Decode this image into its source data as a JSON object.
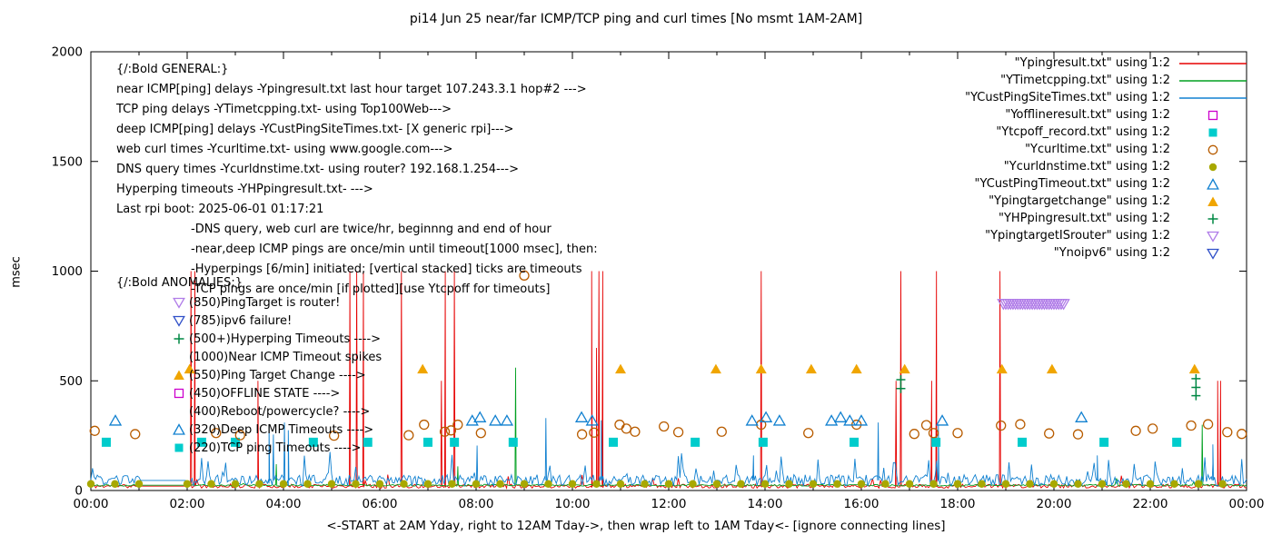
{
  "title": "pi14 Jun 25  near/far ICMP/TCP ping and curl times [No msmt 1AM-2AM]",
  "y_label": "msec",
  "x_caption": "<-START at 2AM Yday, right to 12AM Tday->, then wrap left to 1AM Tday<- [ignore connecting lines]",
  "chart_data": {
    "type": "line",
    "x_unit": "hours",
    "xlim": [
      0,
      24
    ],
    "ylim": [
      0,
      2000
    ],
    "grid": false,
    "legend_position": "top-right",
    "y_ticks": [
      0,
      500,
      1000,
      1500,
      2000
    ],
    "x_major_tick_hours": 2,
    "x_tick_labels": [
      "00:00",
      "02:00",
      "04:00",
      "06:00",
      "08:00",
      "10:00",
      "12:00",
      "14:00",
      "16:00",
      "18:00",
      "20:00",
      "22:00",
      "00:00"
    ],
    "series": [
      {
        "name": "Ypingresult",
        "label": "\"Ypingresult.txt\" using 1:2",
        "color": "#e60000",
        "style": "line",
        "baseline": {
          "base": 20,
          "noise": 9,
          "bump_prob": 0.02,
          "bump_amp": 60,
          "seed": 11
        },
        "spikes": [
          [
            2.08,
            1000
          ],
          [
            2.16,
            1000
          ],
          [
            3.47,
            500
          ],
          [
            5.38,
            1000
          ],
          [
            5.52,
            1000
          ],
          [
            5.66,
            1000
          ],
          [
            6.45,
            1000
          ],
          [
            7.28,
            500
          ],
          [
            7.36,
            1000
          ],
          [
            7.55,
            1000
          ],
          [
            10.4,
            1000
          ],
          [
            10.5,
            650
          ],
          [
            10.55,
            1000
          ],
          [
            10.63,
            1000
          ],
          [
            13.92,
            1000
          ],
          [
            16.72,
            500
          ],
          [
            16.82,
            1000
          ],
          [
            17.46,
            500
          ],
          [
            17.56,
            1000
          ],
          [
            18.88,
            1000
          ],
          [
            23.4,
            500
          ],
          [
            23.46,
            500
          ]
        ]
      },
      {
        "name": "YTimetcpping",
        "label": "\"YTimetcpping.txt\" using 1:2",
        "color": "#00a020",
        "style": "line",
        "baseline": {
          "base": 24,
          "noise": 4,
          "bump_prob": 0.01,
          "bump_amp": 40,
          "seed": 22
        },
        "spikes": [
          [
            3.85,
            120
          ],
          [
            7.62,
            110
          ],
          [
            8.82,
            560
          ],
          [
            23.08,
            300
          ]
        ]
      },
      {
        "name": "YCustPingSiteTimes",
        "label": "\"YCustPingSiteTimes.txt\" using 1:2",
        "color": "#1080d0",
        "style": "line",
        "baseline": {
          "base": 46,
          "noise": 26,
          "bump_prob": 0.07,
          "bump_amp": 110,
          "seed": 33
        },
        "spikes": [
          [
            3.7,
            300
          ],
          [
            3.79,
            255
          ],
          [
            4.02,
            310
          ],
          [
            4.1,
            275
          ],
          [
            8.02,
            205
          ],
          [
            9.45,
            330
          ],
          [
            10.6,
            320
          ],
          [
            13.76,
            160
          ],
          [
            16.35,
            310
          ],
          [
            17.6,
            300
          ],
          [
            20.9,
            160
          ],
          [
            23.3,
            210
          ]
        ]
      },
      {
        "name": "Yofflineresult",
        "label": "\"Yofflineresult.txt\" using 1:2",
        "color": "#cc00cc",
        "style": "square-open",
        "points": []
      },
      {
        "name": "Ytcpoff_record",
        "label": "\"Ytcpoff_record.txt\" using 1:2",
        "color": "#00cccc",
        "style": "square-filled",
        "points": [
          [
            0.32,
            220
          ],
          [
            2.3,
            220
          ],
          [
            3.0,
            220
          ],
          [
            4.62,
            220
          ],
          [
            5.75,
            220
          ],
          [
            7.0,
            220
          ],
          [
            7.55,
            220
          ],
          [
            8.77,
            220
          ],
          [
            10.85,
            220
          ],
          [
            12.55,
            220
          ],
          [
            13.96,
            220
          ],
          [
            15.85,
            220
          ],
          [
            17.55,
            220
          ],
          [
            19.34,
            220
          ],
          [
            21.04,
            220
          ],
          [
            22.55,
            220
          ]
        ]
      },
      {
        "name": "Ycurltime",
        "label": "\"Ycurltime.txt\" using 1:2",
        "color": "#b85c00",
        "style": "circle-open",
        "points": [
          [
            0.08,
            272
          ],
          [
            0.92,
            257
          ],
          [
            2.6,
            262
          ],
          [
            3.1,
            252
          ],
          [
            5.05,
            250
          ],
          [
            6.6,
            252
          ],
          [
            6.92,
            300
          ],
          [
            7.35,
            268
          ],
          [
            7.48,
            274
          ],
          [
            7.62,
            300
          ],
          [
            8.1,
            262
          ],
          [
            9.0,
            980
          ],
          [
            10.2,
            256
          ],
          [
            10.45,
            264
          ],
          [
            10.98,
            300
          ],
          [
            11.12,
            282
          ],
          [
            11.3,
            268
          ],
          [
            11.9,
            292
          ],
          [
            12.2,
            266
          ],
          [
            13.1,
            268
          ],
          [
            13.92,
            300
          ],
          [
            14.9,
            262
          ],
          [
            15.9,
            300
          ],
          [
            17.1,
            258
          ],
          [
            17.35,
            298
          ],
          [
            17.5,
            262
          ],
          [
            18.0,
            262
          ],
          [
            18.9,
            296
          ],
          [
            19.3,
            302
          ],
          [
            19.9,
            260
          ],
          [
            20.5,
            256
          ],
          [
            21.7,
            272
          ],
          [
            22.05,
            282
          ],
          [
            22.85,
            296
          ],
          [
            23.2,
            302
          ],
          [
            23.6,
            266
          ],
          [
            23.9,
            258
          ]
        ]
      },
      {
        "name": "Ycurldnstime",
        "label": "\"Ycurldnstime.txt\" using 1:2",
        "color": "#a8a800",
        "style": "circle-filled",
        "points_rule": {
          "from": 0,
          "to": 23.5,
          "step": 0.5,
          "value": 30,
          "skip": [
            1.5
          ]
        }
      },
      {
        "name": "YCustPingTimeout",
        "label": "\"YCustPingTimeout.txt\" using 1:2",
        "color": "#1080d0",
        "style": "triangle-open",
        "points": [
          [
            0.51,
            315
          ],
          [
            7.92,
            315
          ],
          [
            8.08,
            330
          ],
          [
            8.4,
            315
          ],
          [
            8.64,
            315
          ],
          [
            10.19,
            330
          ],
          [
            10.41,
            315
          ],
          [
            13.73,
            315
          ],
          [
            14.02,
            330
          ],
          [
            14.3,
            315
          ],
          [
            15.38,
            315
          ],
          [
            15.57,
            330
          ],
          [
            15.76,
            315
          ],
          [
            16.0,
            315
          ],
          [
            17.68,
            315
          ],
          [
            20.57,
            330
          ]
        ]
      },
      {
        "name": "Ypingtargetchange",
        "label": "\"Ypingtargetchange\" using 1:2",
        "color": "#f0a500",
        "style": "triangle-filled",
        "points": [
          [
            2.05,
            550
          ],
          [
            6.89,
            550
          ],
          [
            11.0,
            550
          ],
          [
            12.98,
            550
          ],
          [
            13.92,
            550
          ],
          [
            14.96,
            550
          ],
          [
            15.9,
            550
          ],
          [
            16.9,
            550
          ],
          [
            18.92,
            550
          ],
          [
            19.96,
            550
          ],
          [
            22.92,
            550
          ]
        ]
      },
      {
        "name": "YHPpingresult",
        "label": "\"YHPpingresult.txt\" using 1:2",
        "color": "#008844",
        "style": "plus",
        "points": [
          [
            16.82,
            505
          ],
          [
            16.82,
            465
          ],
          [
            22.95,
            510
          ],
          [
            22.95,
            470
          ],
          [
            22.95,
            432
          ]
        ]
      },
      {
        "name": "YpingtargetISrouter",
        "label": "\"YpingtargetISrouter\" using 1:2",
        "color": "#b07ce8",
        "style": "triangle-down-open",
        "points_rule": {
          "from": 18.95,
          "to": 20.2,
          "step": 0.05,
          "value": 850
        }
      },
      {
        "name": "Ynoipv6",
        "label": "\"Ynoipv6\" using 1:2",
        "color": "#3050c8",
        "style": "triangle-down-open",
        "points": []
      }
    ]
  },
  "annotations": {
    "general": [
      {
        "text": "{/:Bold GENERAL:}",
        "indent": 0
      },
      {
        "text": "near ICMP[ping] delays -Ypingresult.txt last hour target 107.243.3.1 hop#2 --->",
        "indent": 0
      },
      {
        "text": "TCP ping delays -YTimetcpping.txt- using Top100Web--->",
        "indent": 0
      },
      {
        "text": "deep ICMP[ping] delays -YCustPingSiteTimes.txt- [X generic rpi]--->",
        "indent": 0
      },
      {
        "text": "web curl times -Ycurltime.txt- using www.google.com--->",
        "indent": 0
      },
      {
        "text": "DNS query times -Ycurldnstime.txt- using router? 192.168.1.254--->",
        "indent": 0
      },
      {
        "text": "Hyperping timeouts -YHPpingresult.txt- --->",
        "indent": 0
      },
      {
        "text": "Last rpi boot: 2025-06-01 01:17:21",
        "indent": 0
      },
      {
        "text": "-DNS query, web curl are twice/hr, beginnng and end of hour",
        "indent": 1
      },
      {
        "text": "-near,deep ICMP pings are once/min until timeout[1000 msec], then:",
        "indent": 1
      },
      {
        "text": "-Hyperpings [6/min] initiated; [vertical stacked] ticks are timeouts",
        "indent": 1
      },
      {
        "text": "-TCP pings are once/min [if plotted][use Ytcpoff for timeouts]",
        "indent": 1
      }
    ],
    "anomalies_header": "{/:Bold ANOMALIES:}",
    "anomalies": [
      {
        "marker": "tri-down",
        "color": "#b07ce8",
        "text": "(850)PingTarget is router!"
      },
      {
        "marker": "tri-down",
        "color": "#3050c8",
        "text": "(785)ipv6 failure!"
      },
      {
        "marker": "plus",
        "color": "#008844",
        "text": "(500+)Hyperping Timeouts ---->"
      },
      {
        "marker": "",
        "color": "",
        "text": "(1000)Near ICMP Timeout spikes"
      },
      {
        "marker": "tri-up-filled",
        "color": "#f0a500",
        "text": "(550)Ping Target Change ---->"
      },
      {
        "marker": "square-open",
        "color": "#cc00cc",
        "text": "(450)OFFLINE STATE ---->"
      },
      {
        "marker": "",
        "color": "",
        "text": "(400)Reboot/powercycle? ---->"
      },
      {
        "marker": "tri-up-open",
        "color": "#1080d0",
        "text": "(320)Deep ICMP Timeouts ---->"
      },
      {
        "marker": "square-filled",
        "color": "#00cccc",
        "text": "(220)TCP ping Timeouts ---->"
      }
    ]
  }
}
